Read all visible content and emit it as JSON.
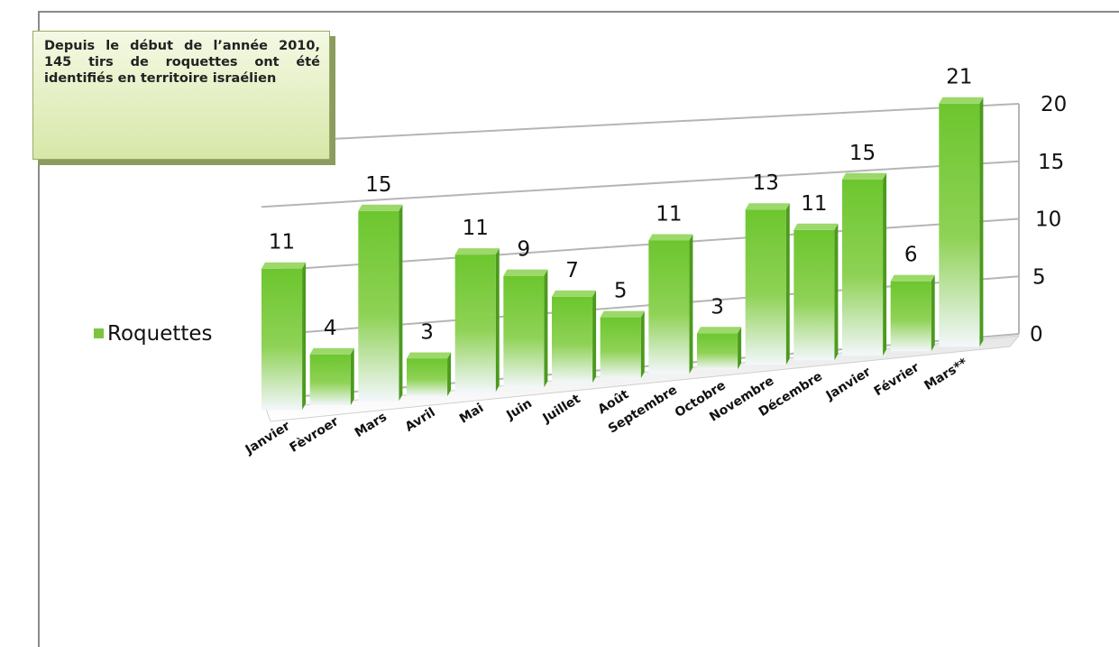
{
  "annotation": "Depuis le début de l’année 2010, 145 tirs de roquettes ont été identifiés en territoire israélien",
  "legend": {
    "label": "Roquettes",
    "color": "#7cc43d"
  },
  "chart_data": {
    "type": "bar",
    "categories": [
      "Janvier",
      "Fèvroer",
      "Mars",
      "Avril",
      "Mai",
      "Juin",
      "Juillet",
      "Août",
      "Septembre",
      "Octobre",
      "Novembre",
      "Décembre",
      "Janvier",
      "Février",
      "Mars**"
    ],
    "series": [
      {
        "name": "Roquettes",
        "values": [
          11,
          4,
          15,
          3,
          11,
          9,
          7,
          5,
          11,
          3,
          13,
          11,
          15,
          6,
          21
        ]
      }
    ],
    "yticks": [
      0,
      5,
      10,
      15,
      20
    ],
    "ylim": [
      0,
      20
    ],
    "yaxis_side": "right",
    "grid": true,
    "legend_position": "left",
    "style": "3d-perspective"
  }
}
